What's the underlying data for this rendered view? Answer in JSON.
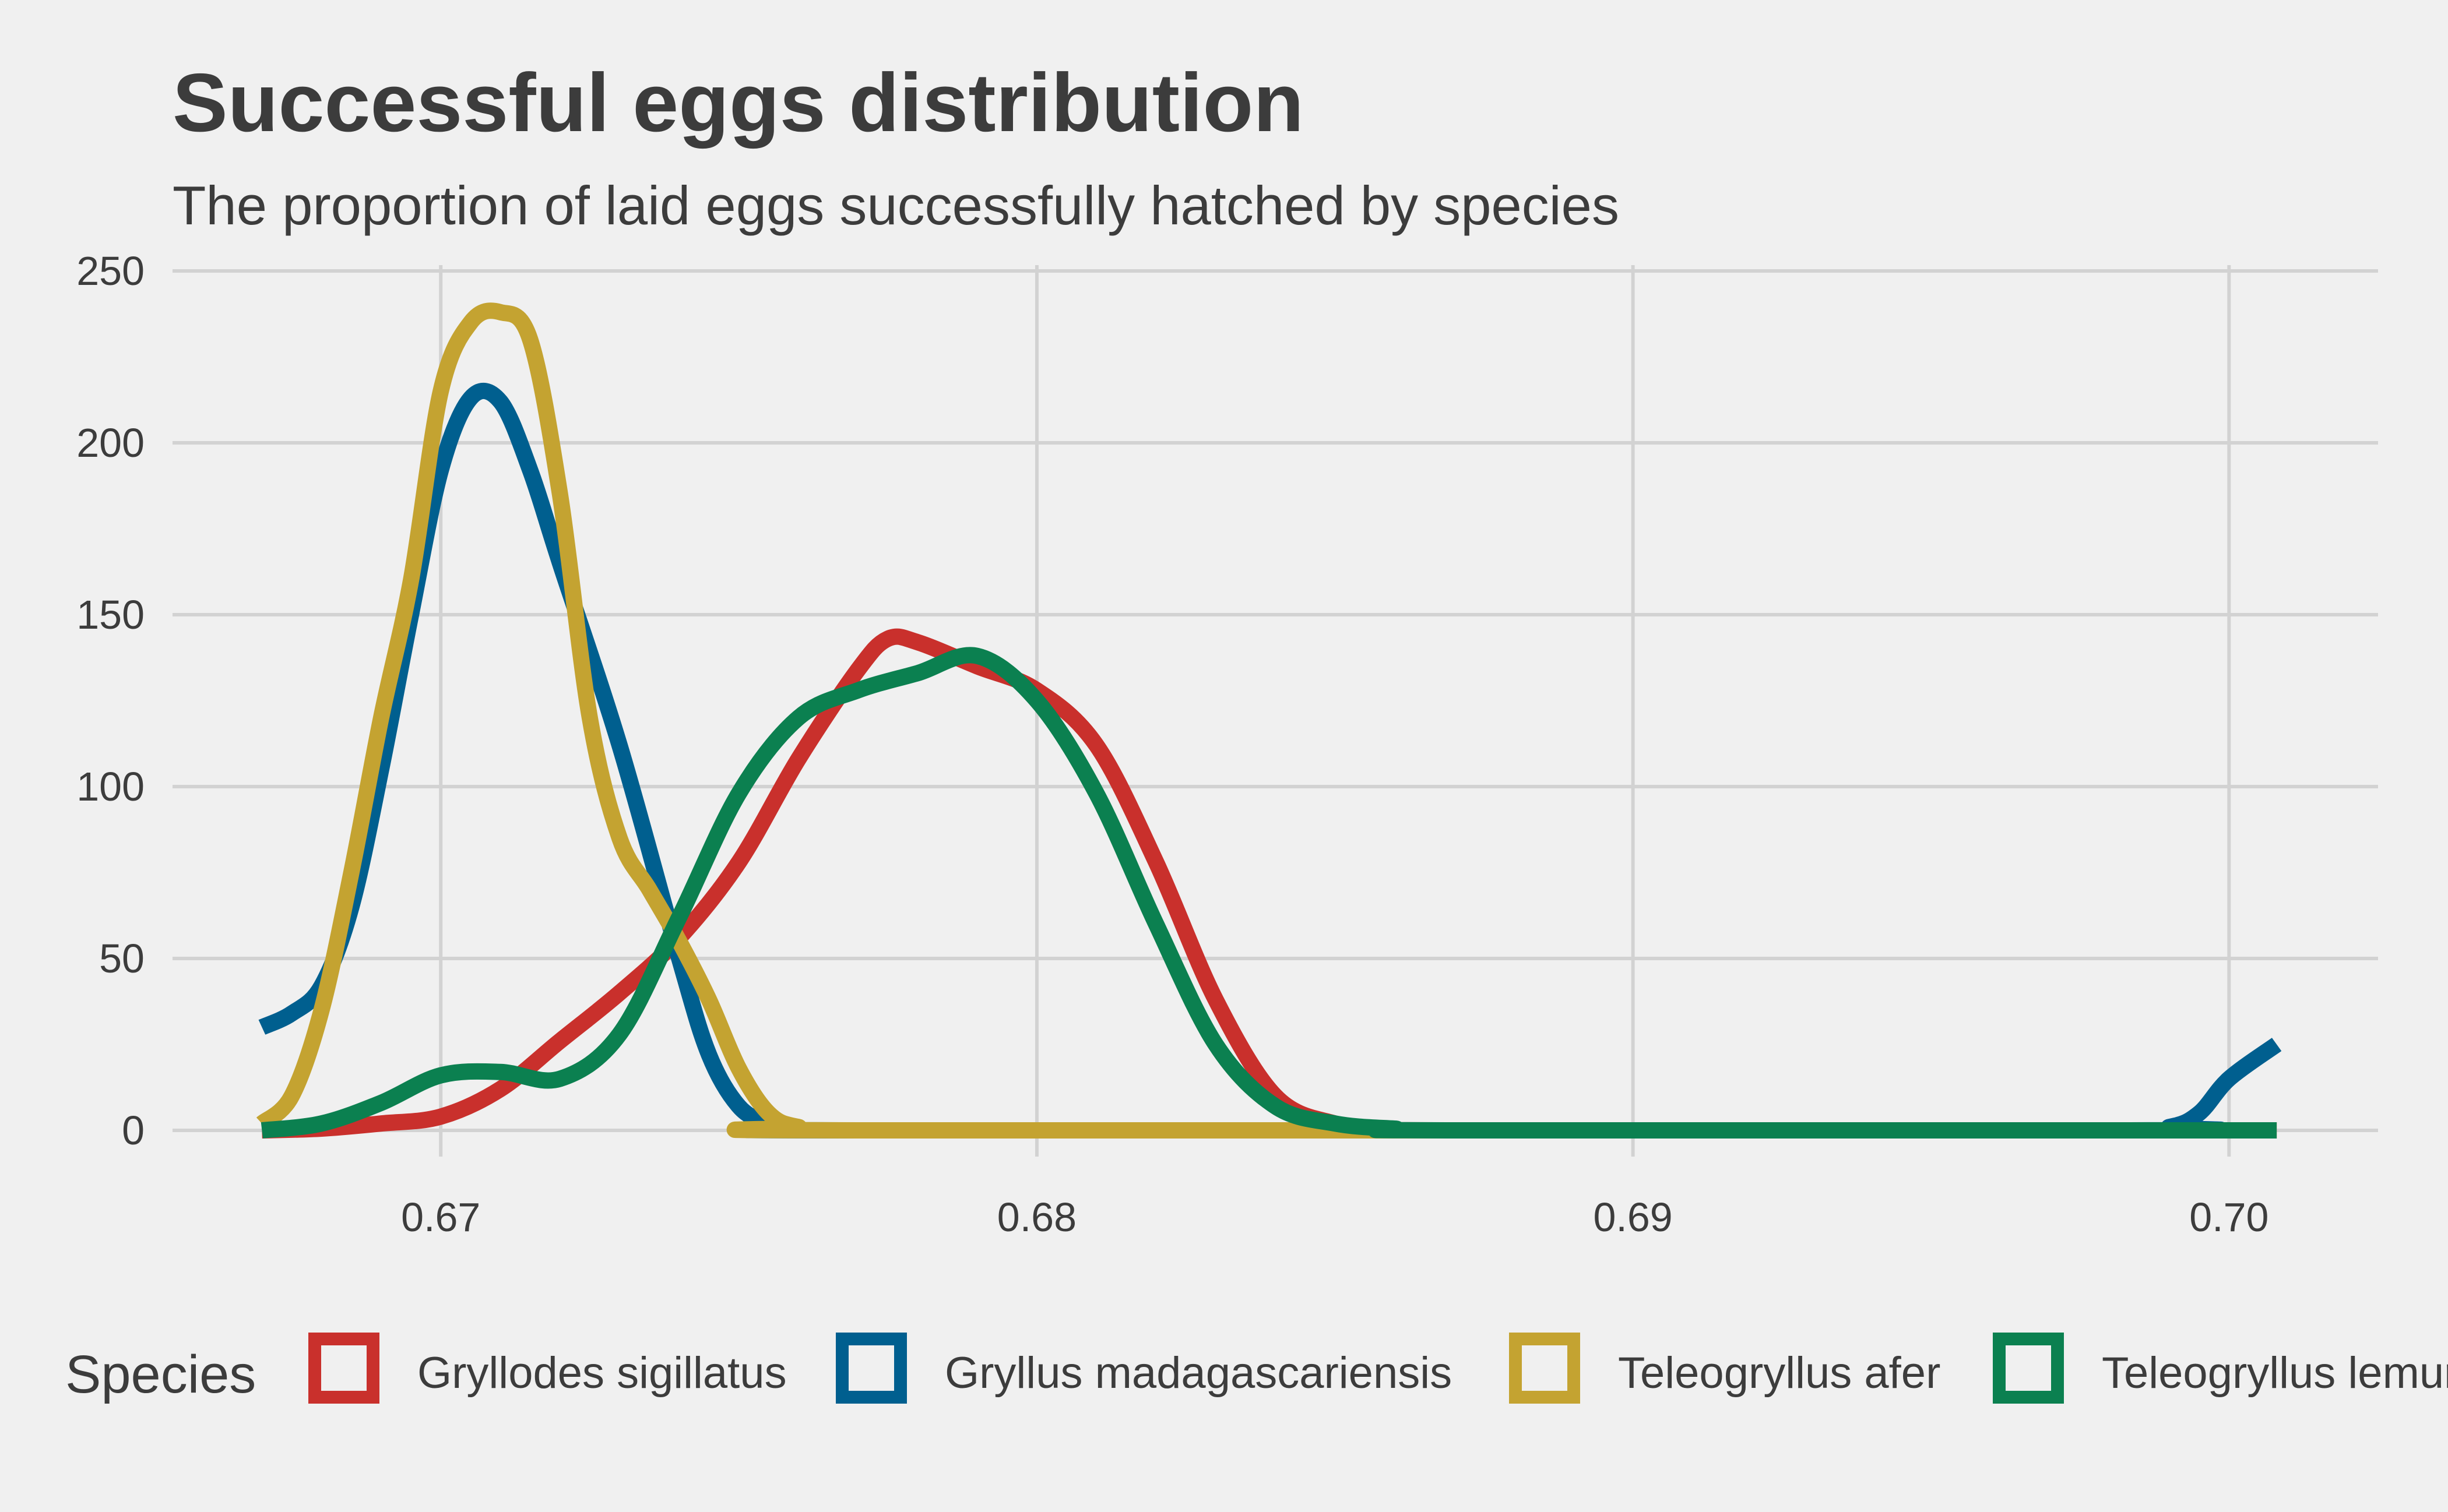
{
  "chart_data": {
    "type": "line",
    "title": "Successful eggs distribution",
    "subtitle": "The proportion of laid eggs successfully hatched by species",
    "xlabel": "",
    "ylabel": "",
    "xlim": [
      0.6655,
      0.7025
    ],
    "ylim": [
      0,
      250
    ],
    "x_ticks": [
      {
        "value": 0.67,
        "label": "0.67"
      },
      {
        "value": 0.68,
        "label": "0.68"
      },
      {
        "value": 0.69,
        "label": "0.69"
      },
      {
        "value": 0.7,
        "label": "0.70"
      }
    ],
    "y_ticks": [
      {
        "value": 0,
        "label": "0"
      },
      {
        "value": 50,
        "label": "50"
      },
      {
        "value": 100,
        "label": "100"
      },
      {
        "value": 150,
        "label": "150"
      },
      {
        "value": 200,
        "label": "200"
      },
      {
        "value": 250,
        "label": "250"
      }
    ],
    "grid": true,
    "legend_title": "Species",
    "legend_position": "bottom",
    "series": [
      {
        "name": "Gryllodes sigillatus",
        "color": "#c9302c",
        "points": [
          [
            0.667,
            0
          ],
          [
            0.668,
            0.5
          ],
          [
            0.669,
            2
          ],
          [
            0.67,
            4
          ],
          [
            0.671,
            12
          ],
          [
            0.672,
            26
          ],
          [
            0.673,
            40
          ],
          [
            0.674,
            56
          ],
          [
            0.675,
            78
          ],
          [
            0.676,
            108
          ],
          [
            0.677,
            134
          ],
          [
            0.6775,
            143
          ],
          [
            0.678,
            142
          ],
          [
            0.679,
            135
          ],
          [
            0.68,
            128
          ],
          [
            0.681,
            112
          ],
          [
            0.682,
            78
          ],
          [
            0.683,
            38
          ],
          [
            0.684,
            10
          ],
          [
            0.685,
            2
          ],
          [
            0.686,
            0.3
          ],
          [
            0.687,
            0
          ],
          [
            0.7008,
            0
          ]
        ]
      },
      {
        "name": "Gryllus madagascariensis",
        "color": "#005f8f",
        "points": [
          [
            0.667,
            30
          ],
          [
            0.6675,
            34
          ],
          [
            0.668,
            42
          ],
          [
            0.6685,
            65
          ],
          [
            0.669,
            105
          ],
          [
            0.6695,
            150
          ],
          [
            0.67,
            192
          ],
          [
            0.6705,
            213
          ],
          [
            0.671,
            212
          ],
          [
            0.6715,
            192
          ],
          [
            0.672,
            165
          ],
          [
            0.673,
            112
          ],
          [
            0.674,
            50
          ],
          [
            0.6745,
            22
          ],
          [
            0.675,
            7
          ],
          [
            0.6755,
            2
          ],
          [
            0.676,
            0.5
          ],
          [
            0.677,
            0
          ],
          [
            0.698,
            0
          ],
          [
            0.699,
            1
          ],
          [
            0.6995,
            5
          ],
          [
            0.7,
            15
          ],
          [
            0.7008,
            25
          ]
        ]
      },
      {
        "name": "Teleogryllus afer",
        "color": "#c4a331",
        "points": [
          [
            0.667,
            2
          ],
          [
            0.6675,
            10
          ],
          [
            0.668,
            35
          ],
          [
            0.6685,
            75
          ],
          [
            0.669,
            120
          ],
          [
            0.6695,
            160
          ],
          [
            0.67,
            215
          ],
          [
            0.6705,
            235
          ],
          [
            0.671,
            238
          ],
          [
            0.6715,
            230
          ],
          [
            0.672,
            185
          ],
          [
            0.6725,
            120
          ],
          [
            0.673,
            85
          ],
          [
            0.6735,
            70
          ],
          [
            0.674,
            55
          ],
          [
            0.6745,
            38
          ],
          [
            0.675,
            18
          ],
          [
            0.6755,
            5
          ],
          [
            0.676,
            1
          ],
          [
            0.677,
            0
          ],
          [
            0.7008,
            0
          ]
        ]
      },
      {
        "name": "Teleogryllus lemur",
        "color": "#0b8050",
        "points": [
          [
            0.667,
            0
          ],
          [
            0.668,
            2
          ],
          [
            0.669,
            8
          ],
          [
            0.67,
            16
          ],
          [
            0.671,
            17
          ],
          [
            0.672,
            15
          ],
          [
            0.673,
            28
          ],
          [
            0.674,
            62
          ],
          [
            0.675,
            98
          ],
          [
            0.676,
            120
          ],
          [
            0.677,
            128
          ],
          [
            0.678,
            133
          ],
          [
            0.679,
            138
          ],
          [
            0.68,
            125
          ],
          [
            0.681,
            98
          ],
          [
            0.682,
            60
          ],
          [
            0.683,
            25
          ],
          [
            0.684,
            7
          ],
          [
            0.685,
            2
          ],
          [
            0.686,
            0.5
          ],
          [
            0.687,
            0
          ],
          [
            0.7008,
            0
          ]
        ]
      }
    ]
  }
}
